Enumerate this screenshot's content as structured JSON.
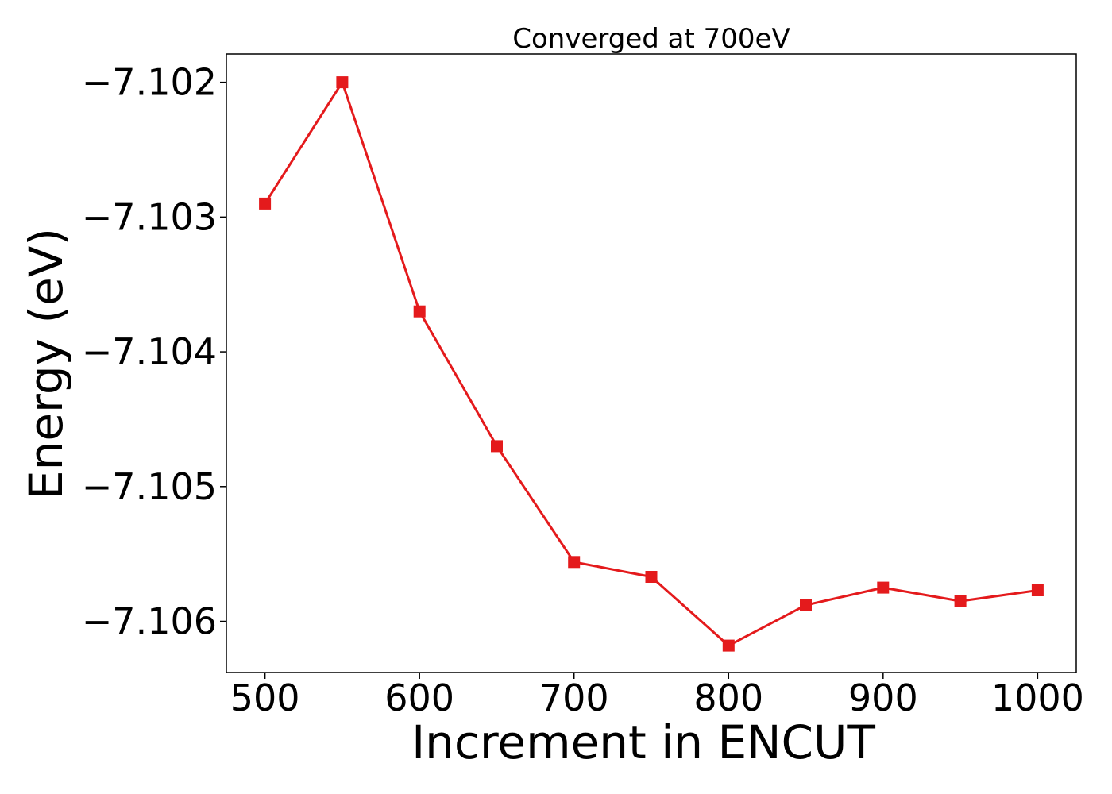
{
  "chart_data": {
    "type": "line",
    "title": "Converged at 700eV",
    "xlabel": "Increment in ENCUT",
    "ylabel": "Energy (eV)",
    "x": [
      500,
      550,
      600,
      650,
      700,
      750,
      800,
      850,
      900,
      950,
      1000
    ],
    "series": [
      {
        "values": [
          -7.1029,
          -7.102,
          -7.1037,
          -7.1047,
          -7.10556,
          -7.10567,
          -7.10618,
          -7.10588,
          -7.10575,
          -7.10585,
          -7.10577
        ],
        "color": "#e41a1c",
        "marker": "square"
      }
    ],
    "xticks": [
      500,
      600,
      700,
      800,
      900,
      1000
    ],
    "xtick_labels": [
      "500",
      "600",
      "700",
      "800",
      "900",
      "1000"
    ],
    "yticks": [
      -7.102,
      -7.103,
      -7.104,
      -7.105,
      -7.106
    ],
    "ytick_labels": [
      "−7.102",
      "−7.103",
      "−7.104",
      "−7.105",
      "−7.106"
    ],
    "xlim": [
      475,
      1025
    ],
    "ylim": [
      -7.10638,
      -7.10179
    ],
    "grid": false,
    "legend": "none"
  }
}
